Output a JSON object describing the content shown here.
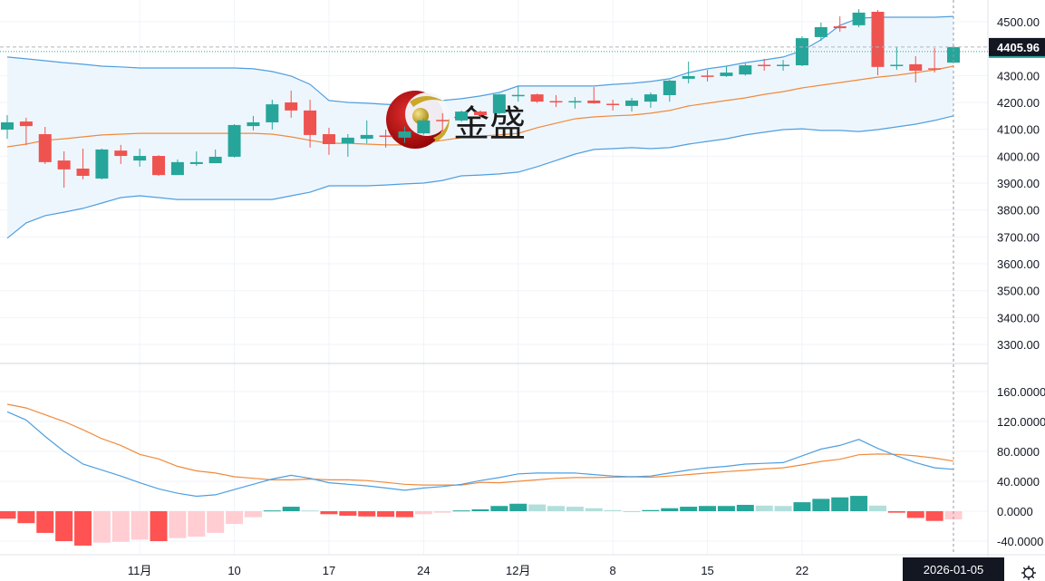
{
  "chart_data": [
    {
      "type": "candlestick",
      "indicator": "Bollinger Bands",
      "ylim": [
        3250,
        4560
      ],
      "y_ticks": [
        "4500.00",
        "4300.00",
        "4200.00",
        "4100.00",
        "4000.00",
        "3900.00",
        "3800.00",
        "3700.00",
        "3600.00",
        "3500.00",
        "3400.00",
        "3300.00"
      ],
      "y_tick_values": [
        4500,
        4300,
        4200,
        4100,
        4000,
        3900,
        3800,
        3700,
        3600,
        3500,
        3400,
        3300
      ],
      "last_price": 4405.96,
      "last_price_label": "4405.96",
      "x_ticks": [
        {
          "label": "11月",
          "index": 7
        },
        {
          "label": "10",
          "index": 12
        },
        {
          "label": "17",
          "index": 17
        },
        {
          "label": "24",
          "index": 22
        },
        {
          "label": "12月",
          "index": 27
        },
        {
          "label": "8",
          "index": 32
        },
        {
          "label": "15",
          "index": 37
        },
        {
          "label": "22",
          "index": 42
        }
      ],
      "crosshair_date_label": "2026-01-05",
      "ohlc_order": [
        "open",
        "high",
        "low",
        "close"
      ],
      "candles": [
        [
          4099,
          4153,
          4065,
          4126
        ],
        [
          4129,
          4143,
          4042,
          4112
        ],
        [
          4082,
          4109,
          3971,
          3978
        ],
        [
          3984,
          4018,
          3883,
          3951
        ],
        [
          3954,
          4028,
          3914,
          3927
        ],
        [
          3917,
          4028,
          3914,
          4025
        ],
        [
          4021,
          4042,
          3971,
          4001
        ],
        [
          3984,
          4028,
          3961,
          4001
        ],
        [
          4001,
          4004,
          3927,
          3930
        ],
        [
          3930,
          3988,
          3930,
          3978
        ],
        [
          3971,
          4018,
          3964,
          3978
        ],
        [
          3974,
          4025,
          3974,
          3998
        ],
        [
          3998,
          4119,
          3995,
          4116
        ],
        [
          4112,
          4150,
          4096,
          4126
        ],
        [
          4126,
          4210,
          4099,
          4193
        ],
        [
          4200,
          4244,
          4143,
          4170
        ],
        [
          4170,
          4210,
          4032,
          4079
        ],
        [
          4082,
          4106,
          4005,
          4045
        ],
        [
          4048,
          4082,
          3998,
          4069
        ],
        [
          4065,
          4133,
          4048,
          4079
        ],
        [
          4077,
          4099,
          4032,
          4072
        ],
        [
          4069,
          4110,
          4050,
          4092
        ],
        [
          4085,
          4140,
          4080,
          4133
        ],
        [
          4135,
          4160,
          4092,
          4131
        ],
        [
          4133,
          4170,
          4128,
          4166
        ],
        [
          4166,
          4170,
          4148,
          4153
        ],
        [
          4160,
          4232,
          4155,
          4230
        ],
        [
          4225,
          4261,
          4203,
          4228
        ],
        [
          4230,
          4233,
          4198,
          4203
        ],
        [
          4205,
          4227,
          4183,
          4201
        ],
        [
          4201,
          4220,
          4177,
          4205
        ],
        [
          4207,
          4257,
          4195,
          4197
        ],
        [
          4195,
          4210,
          4170,
          4191
        ],
        [
          4187,
          4217,
          4166,
          4207
        ],
        [
          4203,
          4237,
          4180,
          4230
        ],
        [
          4227,
          4284,
          4203,
          4281
        ],
        [
          4288,
          4352,
          4271,
          4298
        ],
        [
          4300,
          4321,
          4278,
          4296
        ],
        [
          4298,
          4335,
          4295,
          4311
        ],
        [
          4304,
          4345,
          4300,
          4338
        ],
        [
          4340,
          4362,
          4318,
          4335
        ],
        [
          4335,
          4358,
          4318,
          4340
        ],
        [
          4338,
          4446,
          4335,
          4439
        ],
        [
          4443,
          4497,
          4429,
          4480
        ],
        [
          4483,
          4520,
          4463,
          4476
        ],
        [
          4487,
          4547,
          4480,
          4534
        ],
        [
          4537,
          4544,
          4301,
          4332
        ],
        [
          4336,
          4406,
          4321,
          4340
        ],
        [
          4342,
          4372,
          4274,
          4318
        ],
        [
          4327,
          4402,
          4311,
          4323
        ],
        [
          4348,
          4410,
          4345,
          4405.96
        ]
      ],
      "bollinger_upper": [
        4369,
        4362,
        4355,
        4348,
        4342,
        4335,
        4332,
        4328,
        4328,
        4328,
        4328,
        4328,
        4328,
        4325,
        4315,
        4298,
        4267,
        4207,
        4200,
        4197,
        4193,
        4190,
        4200,
        4207,
        4214,
        4224,
        4237,
        4261,
        4261,
        4261,
        4261,
        4261,
        4267,
        4271,
        4278,
        4288,
        4311,
        4325,
        4335,
        4348,
        4358,
        4369,
        4392,
        4433,
        4487,
        4513,
        4517,
        4517,
        4517,
        4517,
        4520
      ],
      "bollinger_middle": [
        4035,
        4045,
        4059,
        4065,
        4072,
        4079,
        4082,
        4085,
        4085,
        4085,
        4085,
        4085,
        4085,
        4085,
        4082,
        4072,
        4059,
        4048,
        4048,
        4045,
        4042,
        4042,
        4048,
        4059,
        4069,
        4075,
        4079,
        4085,
        4106,
        4123,
        4139,
        4146,
        4150,
        4153,
        4160,
        4170,
        4187,
        4197,
        4207,
        4217,
        4230,
        4240,
        4254,
        4264,
        4274,
        4284,
        4294,
        4301,
        4311,
        4321,
        4335
      ],
      "bollinger_lower": [
        3695,
        3752,
        3779,
        3792,
        3806,
        3826,
        3846,
        3853,
        3846,
        3839,
        3839,
        3839,
        3839,
        3839,
        3839,
        3853,
        3866,
        3890,
        3890,
        3890,
        3893,
        3897,
        3900,
        3910,
        3927,
        3930,
        3934,
        3941,
        3961,
        3984,
        4008,
        4025,
        4028,
        4032,
        4028,
        4032,
        4045,
        4055,
        4065,
        4079,
        4089,
        4099,
        4102,
        4096,
        4096,
        4092,
        4099,
        4109,
        4119,
        4133,
        4150
      ]
    },
    {
      "type": "macd",
      "ylim": [
        -60,
        195
      ],
      "y_ticks": [
        "160.0000",
        "120.0000",
        "80.0000",
        "40.0000",
        "0.0000",
        "-40.0000"
      ],
      "y_tick_values": [
        160,
        120,
        80,
        40,
        0,
        -40
      ],
      "macd": [
        133,
        122,
        100,
        80,
        63,
        55,
        47,
        38,
        30,
        24,
        20,
        22,
        29,
        36,
        43,
        48,
        44,
        38,
        36,
        34,
        31,
        28,
        31,
        33,
        36,
        41,
        45,
        50,
        51,
        51,
        51,
        49,
        47,
        46,
        47,
        51,
        55,
        58,
        60,
        63,
        64,
        65,
        74,
        83,
        88,
        96,
        84,
        74,
        65,
        58,
        56
      ],
      "signal": [
        143,
        138,
        129,
        120,
        109,
        97,
        88,
        76,
        70,
        60,
        54,
        51,
        46,
        44,
        42,
        42,
        43,
        42,
        42,
        41,
        38.5,
        36,
        35,
        35,
        35,
        38.5,
        38,
        40,
        42,
        44,
        45,
        45,
        45.5,
        46,
        45.5,
        47,
        49,
        51,
        53,
        54.5,
        56.5,
        58,
        62,
        66.5,
        69.5,
        75.5,
        76.5,
        76,
        74,
        71,
        67
      ],
      "histogram": [
        -10,
        -16,
        -29,
        -40,
        -46,
        -42,
        -41,
        -38,
        -40,
        -36,
        -34,
        -29,
        -17,
        -8,
        1,
        6,
        1,
        -4,
        -6,
        -7,
        -7.5,
        -8,
        -4,
        -2,
        1,
        2.5,
        7,
        10,
        9,
        7,
        6,
        4,
        1.5,
        0,
        1.5,
        4,
        6,
        7,
        7,
        8.5,
        7.5,
        7,
        12,
        16.5,
        18.5,
        20.5,
        7.5,
        -2,
        -9,
        -13,
        -11
      ]
    }
  ],
  "colors": {
    "up": "#26a69a",
    "down": "#ef5350",
    "hist_up_strong": "#26a69a",
    "hist_up_weak": "#b2dfdb",
    "hist_down_strong": "#ff5252",
    "hist_down_weak": "#ffcdd2",
    "band_line": "#4e9fe0",
    "band_fill": "#eef6fd",
    "middle_line": "#f08a3c",
    "macd_line": "#4e9fe0",
    "signal_line": "#f08a3c",
    "label_bg": "#131722"
  },
  "watermark": {
    "text": "金盛",
    "icon": "jinsheng-logo-icon"
  },
  "settings_icon": "gear-icon"
}
